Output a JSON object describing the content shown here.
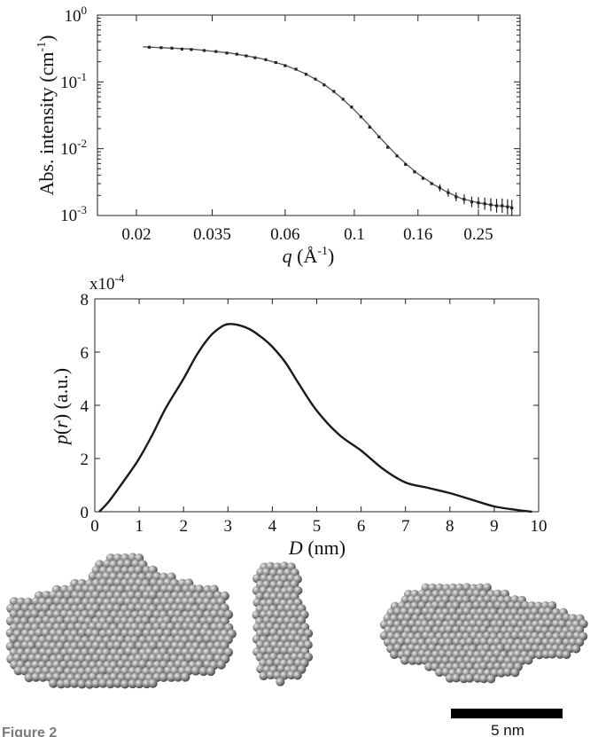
{
  "colors": {
    "curve": "#1a1a1a",
    "fit": "#555555",
    "points": "#222222",
    "sphere_base": "#8c8c8c",
    "sphere_highlight": "#e8e8e8",
    "sphere_shadow": "#3a3a3a",
    "scalebar": "#000000"
  },
  "chart_data": [
    {
      "type": "scatter",
      "title": "",
      "xlabel_italic": "q",
      "xlabel_rest": " (Å",
      "xlabel_sup": "-1",
      "xlabel_close": ")",
      "ylabel": "Abs. intensity (cm",
      "ylabel_sup": "-1",
      "ylabel_close": ")",
      "xscale": "log",
      "yscale": "log",
      "xlim": [
        0.015,
        0.34
      ],
      "ylim": [
        0.001,
        1
      ],
      "xticks": [
        0.02,
        0.035,
        0.06,
        0.1,
        0.16,
        0.25
      ],
      "xtick_labels": [
        "0.02",
        "0.035",
        "0.06",
        "0.1",
        "0.16",
        "0.25"
      ],
      "ytick_labels": [
        {
          "base": "10",
          "exp": "0"
        },
        {
          "base": "10",
          "exp": "-1"
        },
        {
          "base": "10",
          "exp": "-2"
        },
        {
          "base": "10",
          "exp": "-3"
        }
      ],
      "grid": false,
      "series": [
        {
          "kind": "points-with-errorbars",
          "points": [
            [
              0.022,
              0.33
            ],
            [
              0.024,
              0.325
            ],
            [
              0.026,
              0.32
            ],
            [
              0.028,
              0.31
            ],
            [
              0.03,
              0.305
            ],
            [
              0.033,
              0.295
            ],
            [
              0.036,
              0.285
            ],
            [
              0.039,
              0.27
            ],
            [
              0.042,
              0.26
            ],
            [
              0.045,
              0.245
            ],
            [
              0.048,
              0.23
            ],
            [
              0.052,
              0.215
            ],
            [
              0.056,
              0.195
            ],
            [
              0.06,
              0.175
            ],
            [
              0.065,
              0.155
            ],
            [
              0.07,
              0.13
            ],
            [
              0.075,
              0.11
            ],
            [
              0.08,
              0.09
            ],
            [
              0.086,
              0.072
            ],
            [
              0.092,
              0.055
            ],
            [
              0.098,
              0.042
            ],
            [
              0.105,
              0.03
            ],
            [
              0.112,
              0.021
            ],
            [
              0.12,
              0.015
            ],
            [
              0.128,
              0.0105
            ],
            [
              0.137,
              0.0078
            ],
            [
              0.146,
              0.0058
            ],
            [
              0.156,
              0.0045
            ],
            [
              0.166,
              0.0036
            ],
            [
              0.177,
              0.003
            ],
            [
              0.188,
              0.0026
            ],
            [
              0.2,
              0.0022
            ],
            [
              0.212,
              0.0019
            ],
            [
              0.225,
              0.00175
            ],
            [
              0.238,
              0.0016
            ],
            [
              0.25,
              0.00155
            ],
            [
              0.262,
              0.0015
            ],
            [
              0.274,
              0.00145
            ],
            [
              0.286,
              0.0014
            ],
            [
              0.298,
              0.0014
            ],
            [
              0.31,
              0.00135
            ],
            [
              0.32,
              0.0013
            ]
          ]
        },
        {
          "kind": "fit-line",
          "points": [
            [
              0.021,
              0.335
            ],
            [
              0.03,
              0.31
            ],
            [
              0.04,
              0.27
            ],
            [
              0.05,
              0.225
            ],
            [
              0.06,
              0.178
            ],
            [
              0.07,
              0.132
            ],
            [
              0.08,
              0.092
            ],
            [
              0.09,
              0.06
            ],
            [
              0.1,
              0.038
            ],
            [
              0.11,
              0.024
            ],
            [
              0.12,
              0.0152
            ],
            [
              0.13,
              0.0102
            ],
            [
              0.14,
              0.0072
            ],
            [
              0.15,
              0.0054
            ],
            [
              0.16,
              0.0042
            ],
            [
              0.18,
              0.0029
            ],
            [
              0.2,
              0.0022
            ],
            [
              0.22,
              0.0018
            ],
            [
              0.25,
              0.00155
            ],
            [
              0.28,
              0.00142
            ],
            [
              0.32,
              0.00134
            ]
          ]
        }
      ]
    },
    {
      "type": "line",
      "title": "",
      "xlabel_italic": "D",
      "xlabel_rest": " (nm)",
      "ylabel_italic_1": "p",
      "ylabel_mid": "(",
      "ylabel_italic_2": "r",
      "ylabel_rest": ") (a.u.)",
      "multiplier_base": "x10",
      "multiplier_exp": "-4",
      "xlim": [
        0,
        10
      ],
      "ylim": [
        0,
        8
      ],
      "xticks": [
        0,
        1,
        2,
        3,
        4,
        5,
        6,
        7,
        8,
        9,
        10
      ],
      "xtick_labels": [
        "0",
        "1",
        "2",
        "3",
        "4",
        "5",
        "6",
        "7",
        "8",
        "9",
        "10"
      ],
      "yticks": [
        0,
        2,
        4,
        6,
        8
      ],
      "ytick_labels": [
        "0",
        "2",
        "4",
        "6",
        "8"
      ],
      "grid": false,
      "series": [
        {
          "points": [
            [
              0.1,
              0.0
            ],
            [
              0.3,
              0.35
            ],
            [
              0.5,
              0.8
            ],
            [
              0.8,
              1.5
            ],
            [
              1.0,
              2.0
            ],
            [
              1.3,
              2.9
            ],
            [
              1.6,
              3.9
            ],
            [
              2.0,
              5.0
            ],
            [
              2.3,
              5.9
            ],
            [
              2.6,
              6.6
            ],
            [
              2.85,
              6.95
            ],
            [
              3.0,
              7.05
            ],
            [
              3.2,
              7.03
            ],
            [
              3.5,
              6.85
            ],
            [
              3.8,
              6.5
            ],
            [
              4.0,
              6.2
            ],
            [
              4.3,
              5.6
            ],
            [
              4.6,
              4.8
            ],
            [
              5.0,
              3.8
            ],
            [
              5.5,
              2.9
            ],
            [
              6.0,
              2.3
            ],
            [
              6.5,
              1.6
            ],
            [
              7.0,
              1.1
            ],
            [
              7.5,
              0.9
            ],
            [
              8.0,
              0.7
            ],
            [
              8.5,
              0.45
            ],
            [
              9.0,
              0.2
            ],
            [
              9.5,
              0.07
            ],
            [
              9.85,
              0.0
            ]
          ]
        }
      ]
    }
  ],
  "models": {
    "scalebar_label": "5 nm",
    "caption_fragment": "Figure 2"
  }
}
